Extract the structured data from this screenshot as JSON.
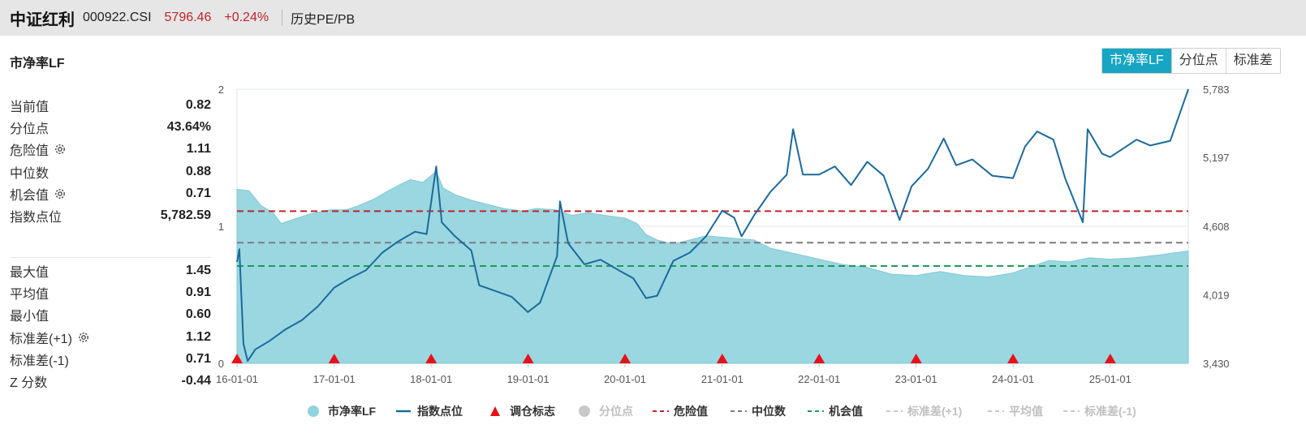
{
  "header": {
    "name": "中证红利",
    "code": "000922.CSI",
    "price": "5796.46",
    "change": "+0.24%",
    "link": "历史PE/PB"
  },
  "panel": {
    "title": "市净率LF",
    "tabs": [
      {
        "label": "市净率LF",
        "active": true
      },
      {
        "label": "分位点",
        "active": false
      },
      {
        "label": "标准差",
        "active": false
      }
    ]
  },
  "stats_top": [
    {
      "label": "当前值",
      "value": "0.82",
      "gear": false
    },
    {
      "label": "分位点",
      "value": "43.64%",
      "gear": false
    },
    {
      "label": "危险值",
      "value": "1.11",
      "gear": true
    },
    {
      "label": "中位数",
      "value": "0.88",
      "gear": false
    },
    {
      "label": "机会值",
      "value": "0.71",
      "gear": true
    },
    {
      "label": "指数点位",
      "value": "5,782.59",
      "gear": false
    }
  ],
  "stats_bottom": [
    {
      "label": "最大值",
      "value": "1.45",
      "gear": false
    },
    {
      "label": "平均值",
      "value": "0.91",
      "gear": false
    },
    {
      "label": "最小值",
      "value": "0.60",
      "gear": false
    },
    {
      "label": "标准差(+1)",
      "value": "1.12",
      "gear": true
    },
    {
      "label": "标准差(-1)",
      "value": "0.71",
      "gear": false
    },
    {
      "label": "Z 分数",
      "value": "-0.44",
      "gear": false
    }
  ],
  "colors": {
    "area": "#8fd3dd",
    "index_line": "#1b6a9b",
    "danger": "#c0242b",
    "median": "#7b7b88",
    "opportunity": "#1e9a58",
    "marker": "#e8101a",
    "muted": "#c8c8c8",
    "tab_active": "#17a5c4"
  },
  "chart_data": {
    "type": "line",
    "x_start": "2016-01-01",
    "x_end": "2025-10-22",
    "x_ticks": [
      "16-01-01",
      "17-01-01",
      "18-01-01",
      "19-01-01",
      "20-01-01",
      "21-01-01",
      "22-01-01",
      "23-01-01",
      "24-01-01",
      "25-01-01"
    ],
    "y_left_ticks": [
      "0",
      "1",
      "2"
    ],
    "y_left_range": [
      0,
      2
    ],
    "y_right_ticks": [
      "3,430",
      "4,019",
      "4,608",
      "5,197",
      "5,783"
    ],
    "y_right_range": [
      3430,
      5783
    ],
    "reference_lines": {
      "danger": 1.11,
      "median": 0.88,
      "opportunity": 0.71
    },
    "rebalance_markers": [
      "2016-01-01",
      "2017-01-01",
      "2018-01-01",
      "2019-01-01",
      "2020-01-01",
      "2021-01-01",
      "2022-01-01",
      "2023-01-01",
      "2024-01-01",
      "2025-01-01"
    ],
    "series": [
      {
        "name": "市净率LF",
        "kind": "area",
        "points": [
          [
            "2016-01-01",
            1.27
          ],
          [
            "2016-02-15",
            1.26
          ],
          [
            "2016-04-01",
            1.15
          ],
          [
            "2016-05-15",
            1.1
          ],
          [
            "2016-06-15",
            1.02
          ],
          [
            "2016-08-01",
            1.05
          ],
          [
            "2016-10-01",
            1.09
          ],
          [
            "2016-12-15",
            1.12
          ],
          [
            "2017-02-15",
            1.12
          ],
          [
            "2017-04-01",
            1.15
          ],
          [
            "2017-06-01",
            1.2
          ],
          [
            "2017-07-15",
            1.25
          ],
          [
            "2017-09-01",
            1.3
          ],
          [
            "2017-10-15",
            1.34
          ],
          [
            "2017-12-01",
            1.32
          ],
          [
            "2018-01-20",
            1.4
          ],
          [
            "2018-02-15",
            1.28
          ],
          [
            "2018-04-01",
            1.23
          ],
          [
            "2018-06-01",
            1.19
          ],
          [
            "2018-08-01",
            1.16
          ],
          [
            "2018-10-01",
            1.13
          ],
          [
            "2018-12-15",
            1.11
          ],
          [
            "2019-02-01",
            1.13
          ],
          [
            "2019-04-15",
            1.12
          ],
          [
            "2019-06-15",
            1.08
          ],
          [
            "2019-08-15",
            1.1
          ],
          [
            "2019-10-15",
            1.08
          ],
          [
            "2020-01-01",
            1.06
          ],
          [
            "2020-02-15",
            1.02
          ],
          [
            "2020-03-20",
            0.94
          ],
          [
            "2020-05-01",
            0.9
          ],
          [
            "2020-07-01",
            0.87
          ],
          [
            "2020-09-01",
            0.9
          ],
          [
            "2020-11-01",
            0.93
          ],
          [
            "2021-01-01",
            0.92
          ],
          [
            "2021-03-01",
            0.91
          ],
          [
            "2021-05-01",
            0.9
          ],
          [
            "2021-07-01",
            0.84
          ],
          [
            "2021-10-01",
            0.8
          ],
          [
            "2022-01-01",
            0.76
          ],
          [
            "2022-04-01",
            0.72
          ],
          [
            "2022-07-01",
            0.7
          ],
          [
            "2022-10-01",
            0.65
          ],
          [
            "2023-01-01",
            0.64
          ],
          [
            "2023-04-01",
            0.67
          ],
          [
            "2023-07-01",
            0.64
          ],
          [
            "2023-10-01",
            0.63
          ],
          [
            "2024-01-01",
            0.66
          ],
          [
            "2024-03-01",
            0.7
          ],
          [
            "2024-05-15",
            0.75
          ],
          [
            "2024-08-01",
            0.74
          ],
          [
            "2024-10-15",
            0.77
          ],
          [
            "2025-01-01",
            0.76
          ],
          [
            "2025-04-01",
            0.77
          ],
          [
            "2025-07-01",
            0.79
          ],
          [
            "2025-10-22",
            0.82
          ]
        ]
      },
      {
        "name": "指数点位",
        "kind": "line",
        "points": [
          [
            "2016-01-01",
            4300
          ],
          [
            "2016-01-10",
            4410
          ],
          [
            "2016-01-25",
            3600
          ],
          [
            "2016-02-10",
            3450
          ],
          [
            "2016-03-10",
            3550
          ],
          [
            "2016-05-01",
            3620
          ],
          [
            "2016-07-01",
            3720
          ],
          [
            "2016-09-01",
            3800
          ],
          [
            "2016-11-01",
            3920
          ],
          [
            "2017-01-01",
            4080
          ],
          [
            "2017-03-01",
            4160
          ],
          [
            "2017-05-01",
            4230
          ],
          [
            "2017-07-01",
            4380
          ],
          [
            "2017-09-01",
            4480
          ],
          [
            "2017-11-01",
            4560
          ],
          [
            "2017-12-15",
            4540
          ],
          [
            "2018-01-20",
            5120
          ],
          [
            "2018-02-10",
            4640
          ],
          [
            "2018-04-01",
            4520
          ],
          [
            "2018-06-01",
            4400
          ],
          [
            "2018-07-01",
            4100
          ],
          [
            "2018-09-01",
            4050
          ],
          [
            "2018-11-01",
            4000
          ],
          [
            "2018-12-31",
            3870
          ],
          [
            "2019-02-15",
            3950
          ],
          [
            "2019-04-20",
            4350
          ],
          [
            "2019-05-01",
            4820
          ],
          [
            "2019-06-01",
            4460
          ],
          [
            "2019-08-01",
            4280
          ],
          [
            "2019-10-01",
            4320
          ],
          [
            "2019-12-15",
            4220
          ],
          [
            "2020-02-01",
            4160
          ],
          [
            "2020-03-20",
            3990
          ],
          [
            "2020-05-01",
            4010
          ],
          [
            "2020-07-01",
            4310
          ],
          [
            "2020-09-01",
            4380
          ],
          [
            "2020-11-01",
            4520
          ],
          [
            "2021-01-01",
            4740
          ],
          [
            "2021-02-15",
            4680
          ],
          [
            "2021-03-15",
            4520
          ],
          [
            "2021-05-01",
            4700
          ],
          [
            "2021-07-01",
            4900
          ],
          [
            "2021-09-01",
            5050
          ],
          [
            "2021-09-25",
            5440
          ],
          [
            "2021-11-01",
            5050
          ],
          [
            "2022-01-01",
            5050
          ],
          [
            "2022-03-01",
            5120
          ],
          [
            "2022-05-01",
            4960
          ],
          [
            "2022-07-01",
            5160
          ],
          [
            "2022-09-01",
            5040
          ],
          [
            "2022-10-31",
            4660
          ],
          [
            "2022-12-15",
            4950
          ],
          [
            "2023-02-15",
            5100
          ],
          [
            "2023-04-15",
            5360
          ],
          [
            "2023-06-01",
            5130
          ],
          [
            "2023-08-01",
            5180
          ],
          [
            "2023-10-15",
            5040
          ],
          [
            "2024-01-01",
            5020
          ],
          [
            "2024-02-15",
            5290
          ],
          [
            "2024-04-01",
            5420
          ],
          [
            "2024-06-01",
            5350
          ],
          [
            "2024-07-15",
            5020
          ],
          [
            "2024-09-20",
            4640
          ],
          [
            "2024-10-08",
            5440
          ],
          [
            "2024-12-01",
            5230
          ],
          [
            "2025-01-01",
            5200
          ],
          [
            "2025-04-10",
            5350
          ],
          [
            "2025-06-01",
            5300
          ],
          [
            "2025-08-15",
            5340
          ],
          [
            "2025-10-22",
            5783
          ]
        ]
      },
      {
        "name": "调仓标志",
        "kind": "marker"
      },
      {
        "name": "分位点",
        "kind": "hidden"
      },
      {
        "name": "危险值",
        "kind": "dashed"
      },
      {
        "name": "中位数",
        "kind": "dashed"
      },
      {
        "name": "机会值",
        "kind": "dashed"
      },
      {
        "name": "标准差(+1)",
        "kind": "hidden"
      },
      {
        "name": "平均值",
        "kind": "hidden"
      },
      {
        "name": "标准差(-1)",
        "kind": "hidden"
      }
    ],
    "legend": [
      {
        "label": "市净率LF",
        "symbol": "circle",
        "color": "#8fd3dd",
        "muted": false
      },
      {
        "label": "指数点位",
        "symbol": "line",
        "color": "#1b6a9b",
        "muted": false
      },
      {
        "label": "调仓标志",
        "symbol": "triangle",
        "color": "#e8101a",
        "muted": false
      },
      {
        "label": "分位点",
        "symbol": "circle",
        "color": "#c8c8c8",
        "muted": true
      },
      {
        "label": "危险值",
        "symbol": "dash",
        "color": "#c0242b",
        "muted": false
      },
      {
        "label": "中位数",
        "symbol": "dash",
        "color": "#7b7b88",
        "muted": false
      },
      {
        "label": "机会值",
        "symbol": "dash",
        "color": "#1e9a58",
        "muted": false
      },
      {
        "label": "标准差(+1)",
        "symbol": "dash",
        "color": "#c8c8c8",
        "muted": true
      },
      {
        "label": "平均值",
        "symbol": "dash",
        "color": "#c8c8c8",
        "muted": true
      },
      {
        "label": "标准差(-1)",
        "symbol": "dash",
        "color": "#c8c8c8",
        "muted": true
      }
    ]
  }
}
